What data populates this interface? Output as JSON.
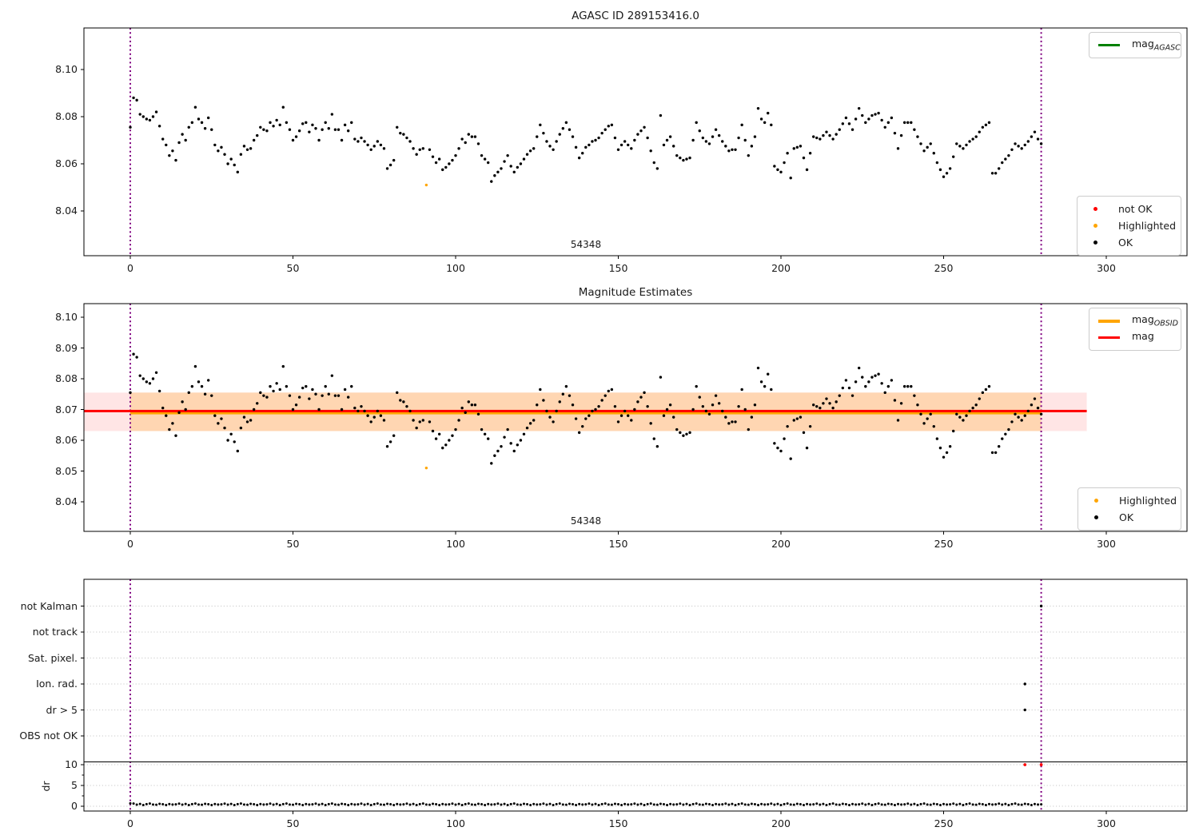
{
  "colors": {
    "red": "#ff0000",
    "orange": "#ffa500",
    "green": "#008000",
    "black": "#000000",
    "purple": "#800080",
    "grid": "#c9c9c9",
    "band_pink": "rgba(255,0,0,0.10)",
    "band_orange": "rgba(255,165,0,0.22)"
  },
  "legends": {
    "mag_agasc": {
      "main": "mag",
      "sub": "AGASC"
    },
    "mag_obsid": {
      "main": "mag",
      "sub": "OBSID"
    },
    "mag": {
      "main": "mag",
      "sub": ""
    },
    "status_top": [
      {
        "label": "not OK",
        "color": "red"
      },
      {
        "label": "Highlighted",
        "color": "orange"
      },
      {
        "label": "OK",
        "color": "black"
      }
    ],
    "status_mid": [
      {
        "label": "Highlighted",
        "color": "orange"
      },
      {
        "label": "OK",
        "color": "black"
      }
    ]
  },
  "annotation": {
    "text": "54348",
    "x": 140
  },
  "chart_data": {
    "type": "scatter",
    "x_is_index": true,
    "xticks": [
      0,
      50,
      100,
      150,
      200,
      250,
      300
    ],
    "xlim": [
      -14.25,
      324.8
    ],
    "vlines": [
      0,
      280
    ],
    "panels": [
      {
        "title": "AGASC ID 289153416.0",
        "yticks": [
          "8.10",
          "8.08",
          "8.06",
          "8.04"
        ],
        "ylim": [
          8.021,
          8.118
        ]
      },
      {
        "title": "Magnitude Estimates",
        "yticks": [
          "8.10",
          "8.09",
          "8.08",
          "8.07",
          "8.06",
          "8.05",
          "8.04"
        ],
        "ylim": [
          8.03,
          8.104
        ],
        "mag": 8.0695,
        "mag_err_band": [
          8.063,
          8.0755
        ],
        "mag_line_xmax": 294,
        "obsid_mag": 8.069,
        "obsid_xrange": [
          0,
          280
        ]
      },
      {
        "categories": [
          "not Kalman",
          "not track",
          "Sat. pixel.",
          "Ion. rad.",
          "dr > 5",
          "OBS not OK"
        ],
        "dr_ticks": [
          "10",
          "5",
          "0"
        ],
        "ylabel": "dr",
        "separator_dr": 10.7,
        "flags": [
          {
            "x": 275,
            "category": "Ion. rad."
          },
          {
            "x": 275,
            "category": "dr > 5"
          },
          {
            "x": 280,
            "category": "not Kalman"
          }
        ],
        "not_ok_points": [
          {
            "x": 275,
            "dr": 10
          },
          {
            "x": 280,
            "dr": 10
          }
        ]
      }
    ],
    "highlighted": [
      {
        "x": 91,
        "mag": 8.051
      }
    ],
    "mags": [
      8.0755,
      8.088,
      8.087,
      8.081,
      8.08,
      8.079,
      8.0785,
      8.08,
      8.082,
      8.076,
      8.0705,
      8.068,
      8.0635,
      8.0655,
      8.0615,
      8.069,
      8.0725,
      8.07,
      8.0755,
      8.0775,
      8.084,
      8.079,
      8.0775,
      8.075,
      8.0795,
      8.0745,
      8.068,
      8.0655,
      8.067,
      8.064,
      8.06,
      8.062,
      8.0595,
      8.0565,
      8.064,
      8.0675,
      8.066,
      8.0665,
      8.07,
      8.072,
      8.0755,
      8.0745,
      8.074,
      8.0775,
      8.076,
      8.0785,
      8.0765,
      8.084,
      8.0775,
      8.0745,
      8.07,
      8.0715,
      8.074,
      8.077,
      8.0775,
      8.0735,
      8.0765,
      8.075,
      8.07,
      8.0745,
      8.0775,
      8.075,
      8.081,
      8.0745,
      8.0745,
      8.07,
      8.0765,
      8.074,
      8.0775,
      8.0705,
      8.0695,
      8.071,
      8.0695,
      8.068,
      8.066,
      8.0675,
      8.0695,
      8.068,
      8.0665,
      8.058,
      8.0595,
      8.0615,
      8.0755,
      8.073,
      8.0725,
      8.071,
      8.0695,
      8.0665,
      8.064,
      8.066,
      8.0665,
      null,
      8.066,
      8.063,
      8.0605,
      8.062,
      8.0575,
      8.0585,
      8.06,
      8.0615,
      8.0635,
      8.0665,
      8.0705,
      8.069,
      8.0725,
      8.0715,
      8.0715,
      8.0685,
      8.0635,
      8.062,
      8.0605,
      8.0525,
      8.055,
      8.0565,
      8.058,
      8.061,
      8.0635,
      8.059,
      8.0565,
      8.0585,
      8.06,
      8.062,
      8.064,
      8.0655,
      8.0665,
      8.0715,
      8.0765,
      8.073,
      8.0695,
      8.0675,
      8.066,
      8.0695,
      8.0725,
      8.075,
      8.0775,
      8.0745,
      8.0715,
      8.067,
      8.0625,
      8.0645,
      8.067,
      8.068,
      8.0695,
      8.07,
      8.071,
      8.073,
      8.0745,
      8.076,
      8.0765,
      8.071,
      8.066,
      8.068,
      8.0695,
      8.068,
      8.0665,
      8.07,
      8.0725,
      8.074,
      8.0755,
      8.071,
      8.0655,
      8.0605,
      8.058,
      8.0805,
      8.068,
      8.07,
      8.0715,
      8.0675,
      8.0635,
      8.0625,
      8.0615,
      8.062,
      8.0625,
      8.07,
      8.0775,
      8.074,
      8.071,
      8.0695,
      8.0685,
      8.0715,
      8.0745,
      8.072,
      8.0695,
      8.0675,
      8.0655,
      8.066,
      8.066,
      8.071,
      8.0765,
      8.07,
      8.0635,
      8.0675,
      8.0715,
      8.0835,
      8.079,
      8.0775,
      8.0815,
      8.0765,
      8.059,
      8.0575,
      8.0565,
      8.0605,
      8.0645,
      8.054,
      8.0665,
      8.067,
      8.0675,
      8.0625,
      8.0575,
      8.0645,
      8.0715,
      8.071,
      8.0705,
      8.072,
      8.0735,
      8.072,
      8.0705,
      8.0725,
      8.0745,
      8.077,
      8.0795,
      8.077,
      8.0745,
      8.079,
      8.0835,
      8.0805,
      8.0775,
      8.079,
      8.0805,
      8.081,
      8.0815,
      8.0785,
      8.0755,
      8.0775,
      8.0795,
      8.073,
      8.0665,
      8.072,
      8.0775,
      8.0775,
      8.0775,
      8.0745,
      8.0715,
      8.0685,
      8.0655,
      8.067,
      8.0685,
      8.0645,
      8.0605,
      8.0575,
      8.0545,
      8.056,
      8.058,
      8.063,
      8.0685,
      8.0675,
      8.0665,
      8.068,
      8.0695,
      8.0705,
      8.0715,
      8.0735,
      8.0755,
      8.0765,
      8.0775,
      8.056,
      8.056,
      8.058,
      8.0605,
      8.062,
      8.0635,
      8.066,
      8.0685,
      8.0675,
      8.0665,
      8.068,
      8.0695,
      8.0715,
      8.0735,
      8.0705,
      8.0685
    ],
    "dr": [
      0.7,
      0.65,
      0.38,
      0.55,
      0.3,
      0.5,
      0.65,
      0.42,
      0.35,
      0.58,
      0.48,
      0.28,
      0.52,
      0.4,
      0.45,
      0.62,
      0.38,
      0.55,
      0.3,
      0.5,
      0.65,
      0.42,
      0.35,
      0.58,
      0.48,
      0.28,
      0.52,
      0.4,
      0.45,
      0.62,
      0.38,
      0.55,
      0.3,
      0.5,
      0.65,
      0.42,
      0.35,
      0.58,
      0.48,
      0.28,
      0.52,
      0.4,
      0.45,
      0.62,
      0.38,
      0.55,
      0.3,
      0.5,
      0.65,
      0.42,
      0.35,
      0.58,
      0.48,
      0.28,
      0.52,
      0.4,
      0.45,
      0.62,
      0.38,
      0.55,
      0.3,
      0.5,
      0.65,
      0.42,
      0.35,
      0.58,
      0.48,
      0.28,
      0.52,
      0.4,
      0.45,
      0.62,
      0.38,
      0.55,
      0.3,
      0.5,
      0.65,
      0.42,
      0.35,
      0.58,
      0.48,
      0.28,
      0.52,
      0.4,
      0.45,
      0.62,
      0.38,
      0.55,
      0.3,
      0.5,
      0.65,
      0.42,
      0.35,
      0.58,
      0.48,
      0.28,
      0.52,
      0.4,
      0.45,
      0.62,
      0.38,
      0.55,
      0.3,
      0.5,
      0.65,
      0.42,
      0.35,
      0.58,
      0.48,
      0.28,
      0.52,
      0.4,
      0.45,
      0.62,
      0.38,
      0.55,
      0.3,
      0.5,
      0.65,
      0.42,
      0.35,
      0.58,
      0.48,
      0.28,
      0.52,
      0.4,
      0.45,
      0.62,
      0.38,
      0.55,
      0.3,
      0.5,
      0.65,
      0.42,
      0.35,
      0.58,
      0.48,
      0.28,
      0.52,
      0.4,
      0.45,
      0.62,
      0.38,
      0.55,
      0.3,
      0.5,
      0.65,
      0.42,
      0.35,
      0.58,
      0.48,
      0.28,
      0.52,
      0.4,
      0.45,
      0.62,
      0.38,
      0.55,
      0.3,
      0.5,
      0.65,
      0.42,
      0.35,
      0.58,
      0.48,
      0.28,
      0.52,
      0.4,
      0.45,
      0.62,
      0.38,
      0.55,
      0.3,
      0.5,
      0.65,
      0.42,
      0.35,
      0.58,
      0.48,
      0.28,
      0.52,
      0.4,
      0.45,
      0.62,
      0.38,
      0.55,
      0.3,
      0.5,
      0.65,
      0.42,
      0.35,
      0.58,
      0.48,
      0.28,
      0.52,
      0.4,
      0.45,
      0.62,
      0.38,
      0.55,
      0.3,
      0.5,
      0.65,
      0.42,
      0.35,
      0.58,
      0.48,
      0.28,
      0.52,
      0.4,
      0.45,
      0.62,
      0.38,
      0.55,
      0.3,
      0.5,
      0.65,
      0.42,
      0.35,
      0.58,
      0.48,
      0.28,
      0.52,
      0.4,
      0.45,
      0.62,
      0.38,
      0.55,
      0.3,
      0.5,
      0.65,
      0.42,
      0.35,
      0.58,
      0.48,
      0.28,
      0.52,
      0.4,
      0.45,
      0.62,
      0.38,
      0.55,
      0.3,
      0.5,
      0.65,
      0.42,
      0.35,
      0.58,
      0.48,
      0.28,
      0.52,
      0.4,
      0.45,
      0.62,
      0.38,
      0.55,
      0.3,
      0.5,
      0.65,
      0.42,
      0.35,
      0.58,
      0.48,
      0.28,
      0.52,
      0.4,
      0.45,
      0.62,
      0.38,
      0.55,
      0.3,
      0.5,
      0.65,
      0.42,
      0.35,
      0.58,
      0.48,
      0.28,
      0.52,
      0.4,
      0.45
    ]
  }
}
